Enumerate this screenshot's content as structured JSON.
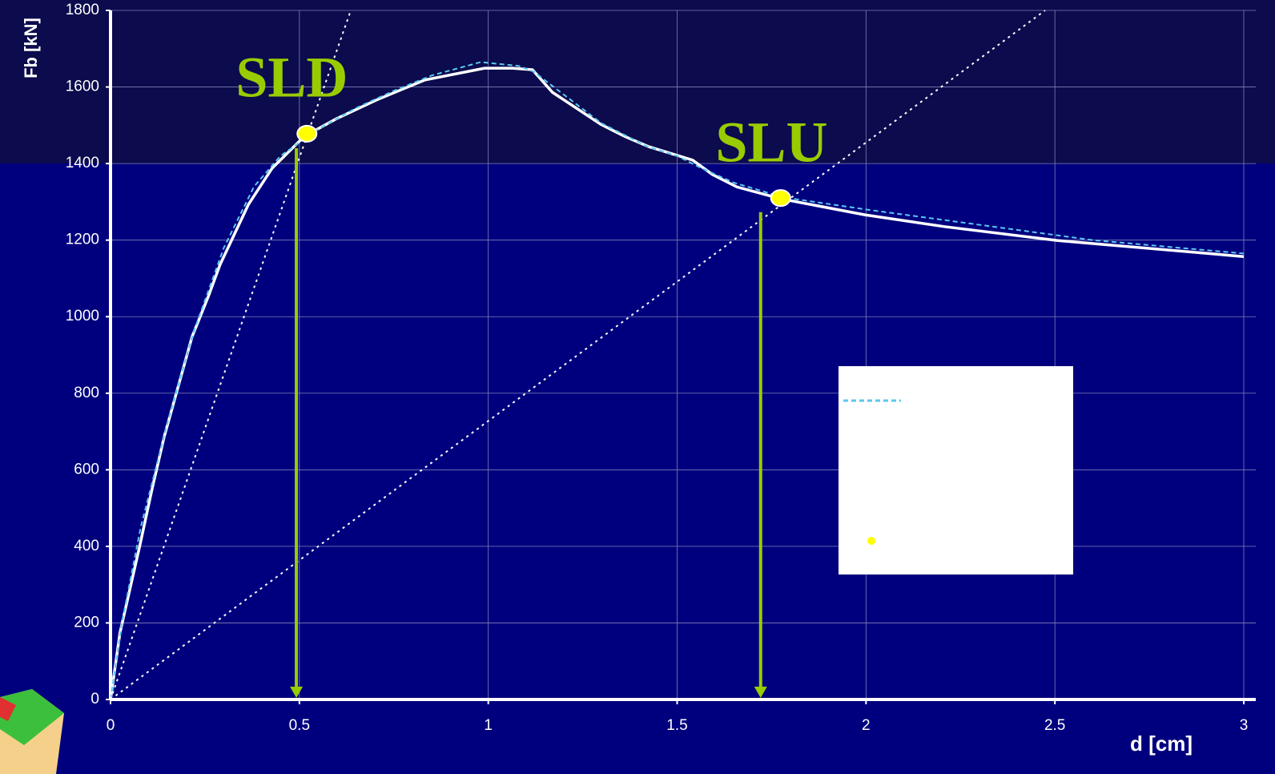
{
  "chart_data": {
    "type": "line",
    "x_label": "d [cm]",
    "y_label": "Fb [kN]",
    "xlim": [
      0,
      3
    ],
    "ylim": [
      0,
      1800
    ],
    "xticks": [
      0,
      0.5,
      1,
      1.5,
      2,
      2.5,
      3
    ],
    "yticks": [
      0,
      200,
      400,
      600,
      800,
      1000,
      1200,
      1400,
      1600,
      1800
    ],
    "grid": true,
    "series": [
      {
        "style": "solid",
        "color": "#ffffff",
        "x": [
          0,
          0.025,
          0.078,
          0.11,
          0.142,
          0.216,
          0.259,
          0.29,
          0.365,
          0.428,
          0.513,
          0.598,
          0.704,
          0.831,
          0.99,
          1.064,
          1.117,
          1.17,
          1.297,
          1.361,
          1.425,
          1.541,
          1.594,
          1.658,
          1.774,
          1.997,
          2.209,
          2.506,
          3
        ],
        "values": [
          0,
          174,
          404,
          550,
          686,
          948,
          1053,
          1136,
          1293,
          1388,
          1471,
          1517,
          1566,
          1618,
          1649,
          1649,
          1645,
          1586,
          1503,
          1471,
          1444,
          1409,
          1371,
          1339,
          1308,
          1266,
          1235,
          1199,
          1157
        ]
      },
      {
        "style": "dashed",
        "color": "#5bc8f0",
        "x": [
          0,
          0.03,
          0.08,
          0.15,
          0.22,
          0.3,
          0.38,
          0.45,
          0.55,
          0.65,
          0.75,
          0.85,
          0.98,
          1.08,
          1.12,
          1.2,
          1.3,
          1.42,
          1.5,
          1.56,
          1.65,
          1.78,
          2.0,
          2.3,
          2.6,
          3
        ],
        "values": [
          0,
          200,
          450,
          720,
          960,
          1180,
          1340,
          1420,
          1490,
          1545,
          1590,
          1630,
          1665,
          1655,
          1640,
          1580,
          1505,
          1445,
          1420,
          1390,
          1350,
          1312,
          1280,
          1240,
          1200,
          1165
        ]
      },
      {
        "style": "dotted",
        "color": "#ffffff",
        "x": [
          0,
          0.636
        ],
        "values": [
          0,
          1800
        ]
      },
      {
        "style": "dotted",
        "color": "#ffffff",
        "x": [
          0,
          2.474
        ],
        "values": [
          0,
          1800
        ]
      },
      {
        "style": "points",
        "color": "#ffff00",
        "x": [
          0.52,
          1.774
        ],
        "values": [
          1478,
          1310
        ]
      }
    ],
    "annotations": [
      {
        "text": "SLD",
        "x": 0.48,
        "y": 1610,
        "arrow_x": 0.492,
        "arrow_from": 1440,
        "arrow_to": 0
      },
      {
        "text": "SLU",
        "x": 1.75,
        "y": 1440,
        "arrow_x": 1.721,
        "arrow_from": 1273,
        "arrow_to": 0
      }
    ]
  }
}
